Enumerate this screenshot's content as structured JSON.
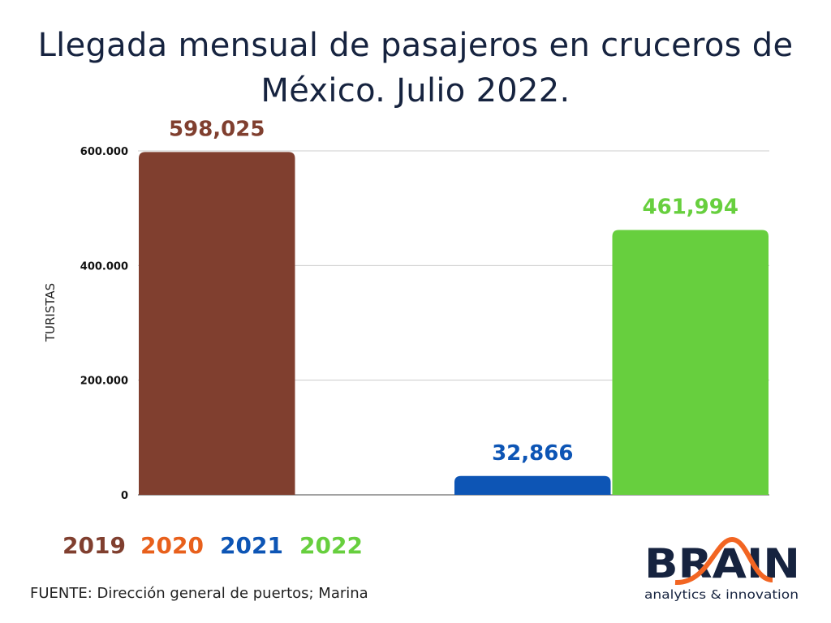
{
  "chart_data": {
    "type": "bar",
    "title": "Llegada mensual de pasajeros en cruceros de México. Julio 2022.",
    "categories": [
      "2019",
      "2020",
      "2021",
      "2022"
    ],
    "values": [
      598025,
      0,
      32866,
      461994
    ],
    "data_labels": [
      "598,025",
      "",
      "32,866",
      "461,994"
    ],
    "colors": [
      "#803f2f",
      "#e8601c",
      "#0d55b5",
      "#67cf3e"
    ],
    "ylabel": "TURISTAS",
    "ylim": [
      0,
      600000
    ],
    "yticks": [
      0,
      200000,
      400000,
      600000
    ],
    "ytick_labels": [
      "0",
      "200.000",
      "400.000",
      "600.000"
    ],
    "grid": true,
    "legend_placement": "bottom-left"
  },
  "source": "FUENTE: Dirección general de puertos; Marina",
  "logo": {
    "name": "BRAIN",
    "tagline": "analytics & innovation"
  }
}
